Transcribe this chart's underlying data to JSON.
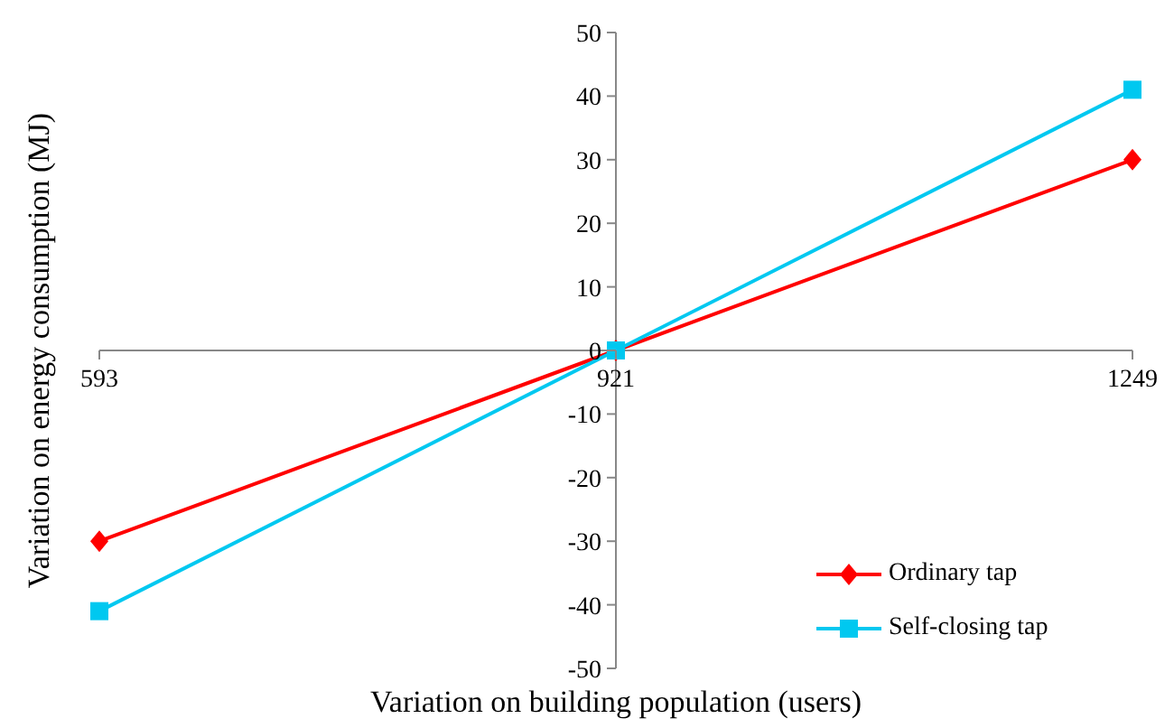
{
  "chart_data": {
    "type": "line",
    "xlabel": "Variation on building population (users)",
    "ylabel": "Variation on energy consumption (MJ)",
    "x": [
      593,
      921,
      1249
    ],
    "xlim": [
      593,
      1249
    ],
    "xticks": [
      593,
      921,
      1249
    ],
    "ylim": [
      -50,
      50
    ],
    "yticks": [
      -50,
      -40,
      -30,
      -20,
      -10,
      0,
      10,
      20,
      30,
      40,
      50
    ],
    "legend": "bottom right",
    "series": [
      {
        "name": "Ordinary tap",
        "color": "#ff0000",
        "marker": "diamond",
        "values": [
          -30,
          0,
          30
        ]
      },
      {
        "name": "Self-closing tap",
        "color": "#00c8f0",
        "marker": "square",
        "values": [
          -41,
          0,
          41
        ]
      }
    ]
  }
}
